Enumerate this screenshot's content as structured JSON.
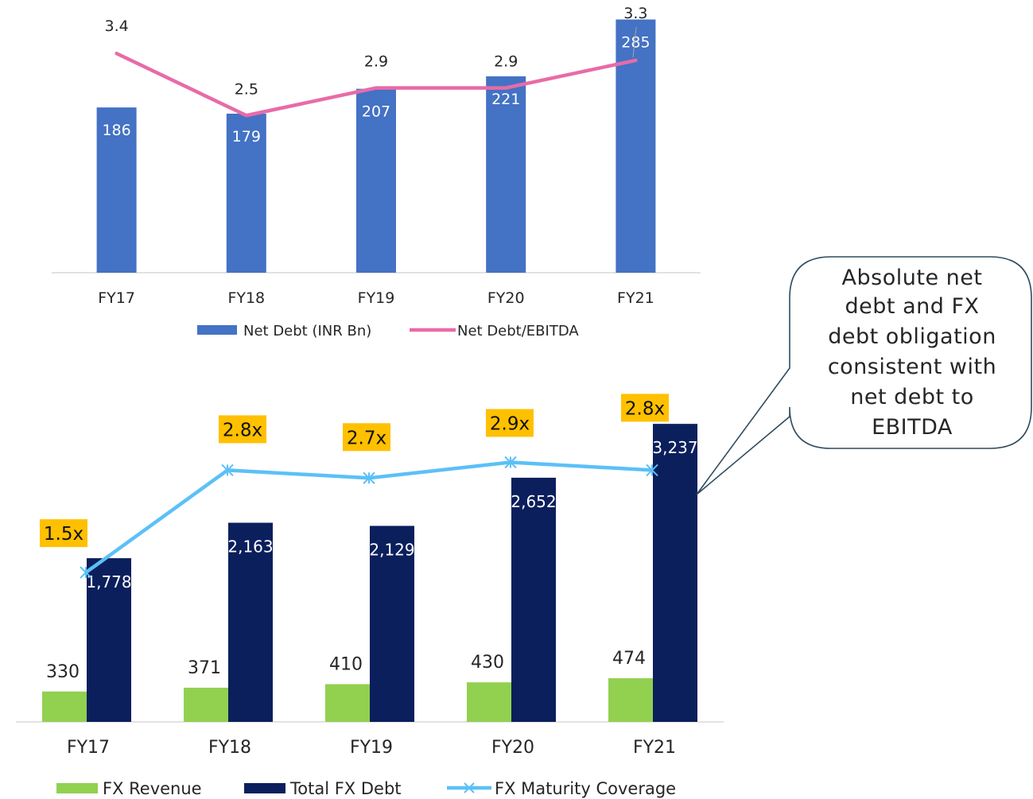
{
  "chart_data": [
    {
      "type": "bar",
      "categories": [
        "FY17",
        "FY18",
        "FY19",
        "FY20",
        "FY21"
      ],
      "series": [
        {
          "name": "Net Debt (INR Bn)",
          "kind": "bar",
          "color": "#4472C4",
          "values": [
            186,
            179,
            207,
            221,
            285
          ]
        },
        {
          "name": "Net Debt/EBITDA",
          "kind": "line",
          "color": "#E86BA8",
          "values": [
            3.4,
            2.5,
            2.9,
            2.9,
            3.3
          ]
        }
      ],
      "legend": "bottom"
    },
    {
      "type": "bar",
      "categories": [
        "FY17",
        "FY18",
        "FY19",
        "FY20",
        "FY21"
      ],
      "series": [
        {
          "name": "FX Revenue",
          "kind": "bar",
          "color": "#92D050",
          "values": [
            330,
            371,
            410,
            430,
            474
          ]
        },
        {
          "name": "Total FX Debt",
          "kind": "bar",
          "color": "#0B1F5C",
          "values": [
            1778,
            2163,
            2129,
            2652,
            3237
          ],
          "labels": [
            "1,778",
            "2,163",
            "2,129",
            "2,652",
            "3,237"
          ]
        },
        {
          "name": "FX Maturity Coverage",
          "kind": "line",
          "color": "#5BC0F8",
          "values": [
            1.5,
            2.8,
            2.7,
            2.9,
            2.8
          ],
          "labels": [
            "1.5x",
            "2.8x",
            "2.7x",
            "2.9x",
            "2.8x"
          ]
        }
      ],
      "legend": "bottom"
    }
  ],
  "callout": {
    "lines": [
      "Absolute net",
      "debt and FX",
      "debt obligation",
      "consistent with",
      "net debt to",
      "EBITDA"
    ]
  },
  "colors": {
    "coverage_label_bg": "#FFC000",
    "callout_border": "#2E4B5E"
  }
}
